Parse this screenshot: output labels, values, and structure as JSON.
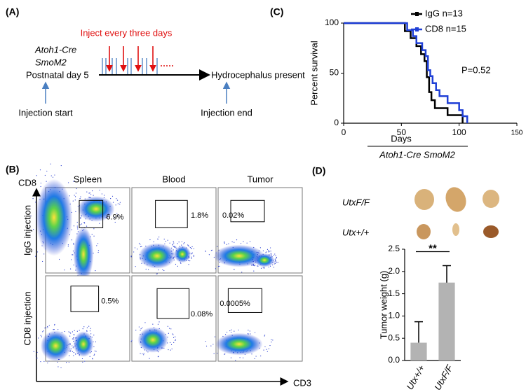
{
  "panel_a": {
    "label": "(A)",
    "inject_note": "Inject every three days",
    "genotype_line1": "Atoh1-Cre",
    "genotype_line2": "SmoM2",
    "start_point": "Postnatal day 5",
    "end_point": "Hydrocephalus present",
    "start_label": "Injection start",
    "end_label": "Injection end"
  },
  "panel_b": {
    "label": "(B)",
    "y_axis": "CD8",
    "x_axis": "CD3",
    "columns": [
      "Spleen",
      "Blood",
      "Tumor"
    ],
    "rows": [
      "IgG injection",
      "CD8 injection"
    ],
    "gates": [
      [
        "6.9%",
        "1.8%",
        "0.02%"
      ],
      [
        "0.5%",
        "0.08%",
        "0.0005%"
      ]
    ]
  },
  "panel_c": {
    "label": "(C)"
  },
  "panel_d": {
    "label": "(D)",
    "photo_rows": [
      "UtxF/F",
      "Utx+/+"
    ]
  },
  "chart_data": [
    {
      "type": "line",
      "ylabel": "Percent survival",
      "xlabel": "Days",
      "xlabel_sub": "Atoh1-Cre SmoM2",
      "annotation": "P=0.52",
      "xlim": [
        0,
        150
      ],
      "xticks": [
        0,
        50,
        100,
        150
      ],
      "ylim": [
        0,
        100
      ],
      "yticks": [
        0,
        50,
        100
      ],
      "legend": "top-right",
      "series": [
        {
          "name": "IgG n=13",
          "color": "#000000",
          "x": [
            0,
            53,
            53,
            58,
            58,
            63,
            63,
            67,
            67,
            70,
            70,
            72,
            72,
            74,
            74,
            76,
            76,
            79,
            79,
            90,
            90,
            103,
            103
          ],
          "values": [
            100,
            100,
            92,
            92,
            85,
            85,
            77,
            77,
            69,
            69,
            62,
            62,
            46,
            46,
            31,
            31,
            23,
            23,
            15,
            15,
            8,
            8,
            0
          ]
        },
        {
          "name": "CD8 n=15",
          "color": "#1f3fd6",
          "x": [
            0,
            55,
            55,
            60,
            60,
            63,
            63,
            68,
            68,
            71,
            71,
            73,
            73,
            75,
            75,
            77,
            77,
            80,
            80,
            83,
            83,
            90,
            90,
            100,
            100,
            103,
            103,
            107,
            107
          ],
          "values": [
            100,
            100,
            93,
            93,
            87,
            87,
            80,
            80,
            73,
            73,
            67,
            67,
            53,
            53,
            47,
            47,
            40,
            40,
            33,
            33,
            27,
            27,
            20,
            20,
            13,
            13,
            7,
            7,
            0
          ]
        }
      ]
    },
    {
      "type": "bar",
      "ylabel": "Tumor weight (g)",
      "annotation": "**",
      "categories": [
        "Utx+/+",
        "UtxF/F"
      ],
      "values": [
        0.4,
        1.75
      ],
      "errors": [
        0.47,
        0.38
      ],
      "color": "#b3b3b3",
      "ylim": [
        0,
        2.5
      ],
      "yticks": [
        {
          "value": 0,
          "label": "0.0"
        },
        0.5,
        {
          "value": 1,
          "label": "1.0"
        },
        1.5,
        {
          "value": 2,
          "label": "2.0"
        },
        2.5
      ]
    }
  ]
}
